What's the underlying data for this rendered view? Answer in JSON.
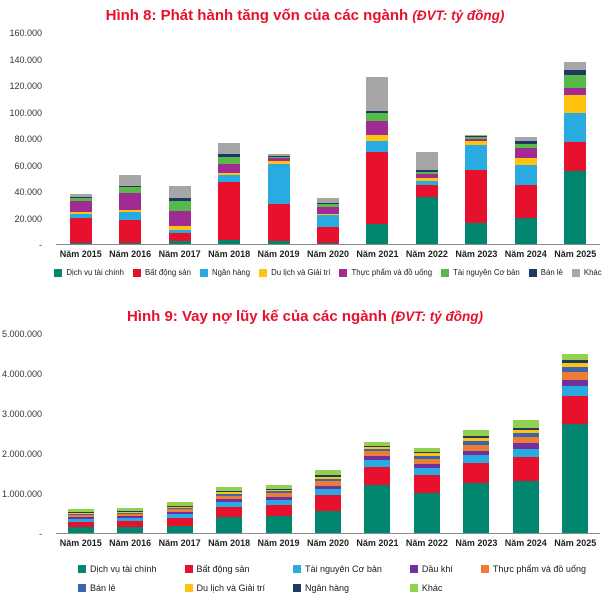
{
  "chart_data": [
    {
      "type": "bar",
      "stacked": true,
      "title": "Hình 8: Phát hành tăng vốn của các ngành",
      "unit": "(ĐVT: tỷ đồng)",
      "xlabel": "",
      "ylabel": "tỷ đồng",
      "ylim": [
        0,
        160000
      ],
      "ytick_labels": [
        "160.000",
        "140.000",
        "120.000",
        "100.000",
        "80.000",
        "60.000",
        "40.000",
        "20.000",
        "-"
      ],
      "grid": false,
      "legend_position": "bottom",
      "legend_layout": "row",
      "categories": [
        "Năm 2015",
        "Năm 2016",
        "Năm 2017",
        "Năm 2018",
        "Năm 2019",
        "Năm 2020",
        "Năm 2021",
        "Năm 2022",
        "Năm 2023",
        "Năm 2024",
        "Năm 2025"
      ],
      "series": [
        {
          "name": "Dịch vụ tài chính",
          "color": "#00856E",
          "values": [
            1000,
            1000,
            2000,
            3000,
            2000,
            1000,
            15000,
            36000,
            16000,
            20000,
            55000
          ]
        },
        {
          "name": "Bất động sản",
          "color": "#E8112D",
          "values": [
            19000,
            17000,
            6000,
            44000,
            28000,
            12000,
            55000,
            9000,
            40000,
            25000,
            22000
          ]
        },
        {
          "name": "Ngân hàng",
          "color": "#29ABE2",
          "values": [
            3000,
            6000,
            3000,
            5000,
            31000,
            9000,
            8000,
            3000,
            19000,
            15000,
            22000
          ]
        },
        {
          "name": "Du lịch và Giải trí",
          "color": "#FFC20E",
          "values": [
            1000,
            2000,
            3000,
            2000,
            2000,
            1000,
            5000,
            2000,
            3000,
            5000,
            14000
          ]
        },
        {
          "name": "Thực phẩm và đồ uống",
          "color": "#A02B93",
          "values": [
            9000,
            13000,
            11000,
            7000,
            2000,
            5000,
            10000,
            3000,
            2000,
            8000,
            5000
          ]
        },
        {
          "name": "Tài nguyên Cơ bản",
          "color": "#56B948",
          "values": [
            2000,
            4000,
            8000,
            5000,
            1000,
            2000,
            6000,
            2000,
            1000,
            3000,
            10000
          ]
        },
        {
          "name": "Bán lẻ",
          "color": "#1F3864",
          "values": [
            1000,
            1000,
            2000,
            2000,
            1000,
            1000,
            2000,
            1000,
            1000,
            2000,
            4000
          ]
        },
        {
          "name": "Khác",
          "color": "#A6A6A6",
          "values": [
            2000,
            8000,
            9000,
            9000,
            1000,
            4000,
            26000,
            14000,
            1000,
            3000,
            6000
          ]
        }
      ]
    },
    {
      "type": "bar",
      "stacked": true,
      "title": "Hình 9: Vay nợ lũy kế của các ngành",
      "unit": "(ĐVT: tỷ đồng)",
      "xlabel": "",
      "ylabel": "tỷ đồng",
      "ylim": [
        0,
        5000000
      ],
      "ytick_labels": [
        "5.000.000",
        "4.000.000",
        "3.000.000",
        "2.000.000",
        "1.000.000",
        "-"
      ],
      "grid": false,
      "legend_position": "bottom",
      "legend_layout": "grid",
      "categories": [
        "Năm 2015",
        "Năm 2016",
        "Năm 2017",
        "Năm 2018",
        "Năm 2019",
        "Năm 2020",
        "Năm 2021",
        "Năm 2022",
        "Năm 2023",
        "Năm 2024",
        "Năm 2025"
      ],
      "series": [
        {
          "name": "Dịch vụ tài chính",
          "color": "#00856E",
          "values": [
            150000,
            150000,
            180000,
            400000,
            420000,
            550000,
            1200000,
            1000000,
            1250000,
            1300000,
            2750000
          ]
        },
        {
          "name": "Bất động sản",
          "color": "#E8112D",
          "values": [
            120000,
            140000,
            200000,
            250000,
            280000,
            400000,
            450000,
            450000,
            500000,
            600000,
            700000
          ]
        },
        {
          "name": "Tài nguyên Cơ bản",
          "color": "#29ABE2",
          "values": [
            80000,
            80000,
            90000,
            120000,
            120000,
            150000,
            180000,
            180000,
            200000,
            220000,
            250000
          ]
        },
        {
          "name": "Dầu khí",
          "color": "#7030A0",
          "values": [
            50000,
            50000,
            60000,
            80000,
            80000,
            90000,
            100000,
            100000,
            120000,
            130000,
            150000
          ]
        },
        {
          "name": "Thực phẩm và đồ uống",
          "color": "#ED7D31",
          "values": [
            50000,
            60000,
            70000,
            90000,
            100000,
            110000,
            120000,
            130000,
            150000,
            170000,
            200000
          ]
        },
        {
          "name": "Bán lẻ",
          "color": "#3A66B0",
          "values": [
            30000,
            30000,
            40000,
            50000,
            50000,
            60000,
            70000,
            80000,
            90000,
            100000,
            120000
          ]
        },
        {
          "name": "Du lịch và Giải trí",
          "color": "#FFC20E",
          "values": [
            20000,
            20000,
            25000,
            30000,
            40000,
            50000,
            50000,
            60000,
            70000,
            80000,
            100000
          ]
        },
        {
          "name": "Ngân hàng",
          "color": "#1F3864",
          "values": [
            20000,
            20000,
            25000,
            30000,
            30000,
            40000,
            30000,
            40000,
            50000,
            50000,
            80000
          ]
        },
        {
          "name": "Khác",
          "color": "#92D050",
          "values": [
            80000,
            70000,
            90000,
            100000,
            80000,
            130000,
            100000,
            110000,
            170000,
            200000,
            150000
          ]
        }
      ]
    }
  ]
}
